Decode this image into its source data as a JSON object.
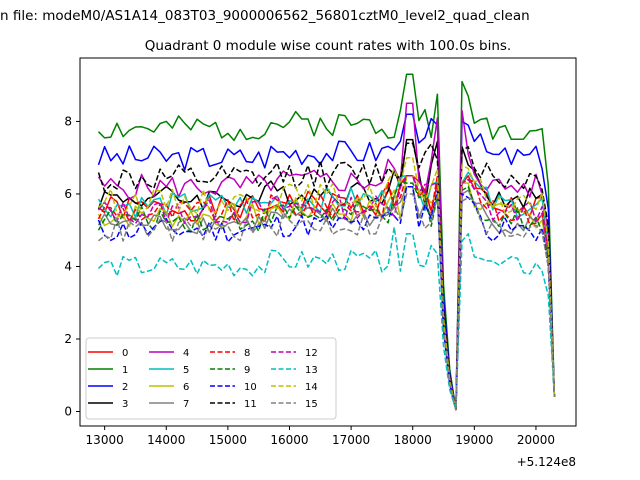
{
  "chart_data": {
    "type": "line",
    "title": "Quadrant 0 module wise count rates with 100.0s bins.",
    "suptitle": "n file: modeM0/AS1A14_083T03_9000006562_56801cztM0_level2_quad_clean",
    "xlabel": "",
    "ylabel": "",
    "x_offset_label": "+5.124e8",
    "xlim": [
      12600,
      20650
    ],
    "ylim": [
      -0.4,
      9.75
    ],
    "x_ticks": [
      13000,
      14000,
      15000,
      16000,
      17000,
      18000,
      19000,
      20000
    ],
    "y_ticks": [
      0,
      2,
      4,
      6,
      8
    ],
    "x_start": 12900,
    "x_step": 100,
    "grid": false,
    "legend_position": "lower-left",
    "series": [
      {
        "name": "0",
        "color": "#ff0000",
        "dash": "solid",
        "base": 5.6,
        "amp": 0.35,
        "peak": 6.5
      },
      {
        "name": "1",
        "color": "#008000",
        "dash": "solid",
        "base": 7.8,
        "amp": 0.35,
        "peak": 9.3
      },
      {
        "name": "2",
        "color": "#0000ff",
        "dash": "solid",
        "base": 7.0,
        "amp": 0.35,
        "peak": 8.2
      },
      {
        "name": "3",
        "color": "#000000",
        "dash": "solid",
        "base": 5.9,
        "amp": 0.35,
        "peak": 7.5
      },
      {
        "name": "4",
        "color": "#bf00bf",
        "dash": "solid",
        "base": 6.2,
        "amp": 0.35,
        "peak": 8.5
      },
      {
        "name": "5",
        "color": "#00bfbf",
        "dash": "solid",
        "base": 5.7,
        "amp": 0.35,
        "peak": 6.5
      },
      {
        "name": "6",
        "color": "#bfbf00",
        "dash": "solid",
        "base": 5.4,
        "amp": 0.35,
        "peak": 6.5
      },
      {
        "name": "7",
        "color": "#808080",
        "dash": "solid",
        "base": 5.2,
        "amp": 0.3,
        "peak": 6.2
      },
      {
        "name": "8",
        "color": "#ff0000",
        "dash": "dashed",
        "base": 5.5,
        "amp": 0.35,
        "peak": 6.5
      },
      {
        "name": "9",
        "color": "#008000",
        "dash": "dashed",
        "base": 5.3,
        "amp": 0.35,
        "peak": 6.3
      },
      {
        "name": "10",
        "color": "#0000ff",
        "dash": "dashed",
        "base": 5.0,
        "amp": 0.35,
        "peak": 6.2
      },
      {
        "name": "11",
        "color": "#000000",
        "dash": "dashed",
        "base": 6.4,
        "amp": 0.4,
        "peak": 7.4
      },
      {
        "name": "12",
        "color": "#bf00bf",
        "dash": "dashed",
        "base": 5.5,
        "amp": 0.35,
        "peak": 6.5
      },
      {
        "name": "13",
        "color": "#00bfbf",
        "dash": "dashed",
        "base": 4.0,
        "amp": 0.3,
        "peak": 4.9
      },
      {
        "name": "14",
        "color": "#bfbf00",
        "dash": "dashed",
        "base": 5.8,
        "amp": 0.35,
        "peak": 7.0
      },
      {
        "name": "15",
        "color": "#808080",
        "dash": "dashed",
        "base": 5.0,
        "amp": 0.35,
        "peak": 6.0
      }
    ]
  }
}
